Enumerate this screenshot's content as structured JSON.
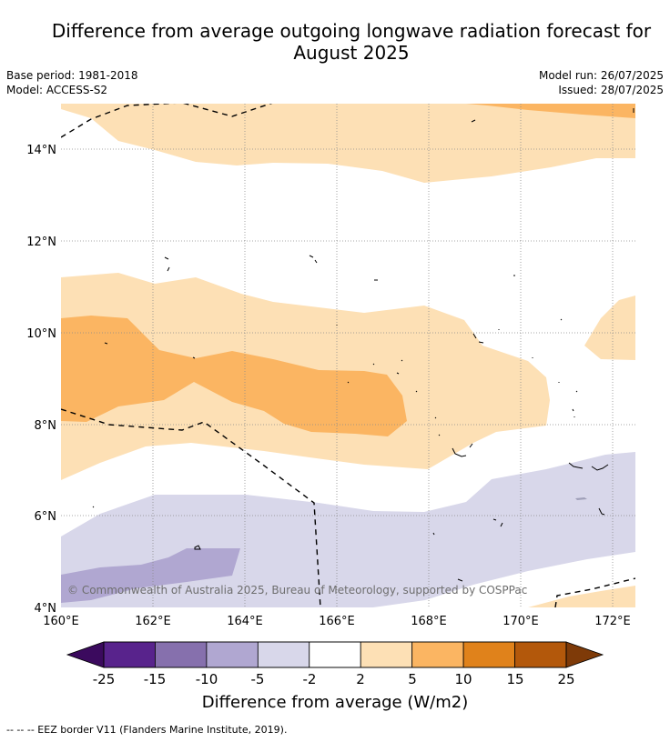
{
  "header": {
    "title_line1": "Difference from average outgoing longwave radiation forecast for",
    "title_line2": "August 2025",
    "base_period": "Base period: 1981-2018",
    "model": "Model: ACCESS-S2",
    "model_run": "Model run: 26/07/2025",
    "issued": "Issued: 28/07/2025"
  },
  "map": {
    "lat_labels": [
      "14°N",
      "12°N",
      "10°N",
      "8°N",
      "6°N",
      "4°N"
    ],
    "lon_labels": [
      "160°E",
      "162°E",
      "164°E",
      "166°E",
      "168°E",
      "170°E",
      "172°E"
    ],
    "copyright": "© Commonwealth of Australia 2025, Bureau of Meteorology, supported by COSPPac"
  },
  "colorbar": {
    "ticks": [
      "-25",
      "-15",
      "-10",
      "-5",
      "-2",
      "2",
      "5",
      "10",
      "15",
      "25"
    ],
    "colors": [
      "#58238c",
      "#8670ad",
      "#b0a7d1",
      "#d8d7ea",
      "#ffffff",
      "#fde0b5",
      "#fbb562",
      "#e0821b",
      "#b3580b"
    ],
    "under_color": "#3b0a5e",
    "over_color": "#7e3a08",
    "label": "Difference from average (W/m2)"
  },
  "footer": {
    "legend": "--  --  -- EEZ border V11 (Flanders Marine Institute, 2019)."
  }
}
